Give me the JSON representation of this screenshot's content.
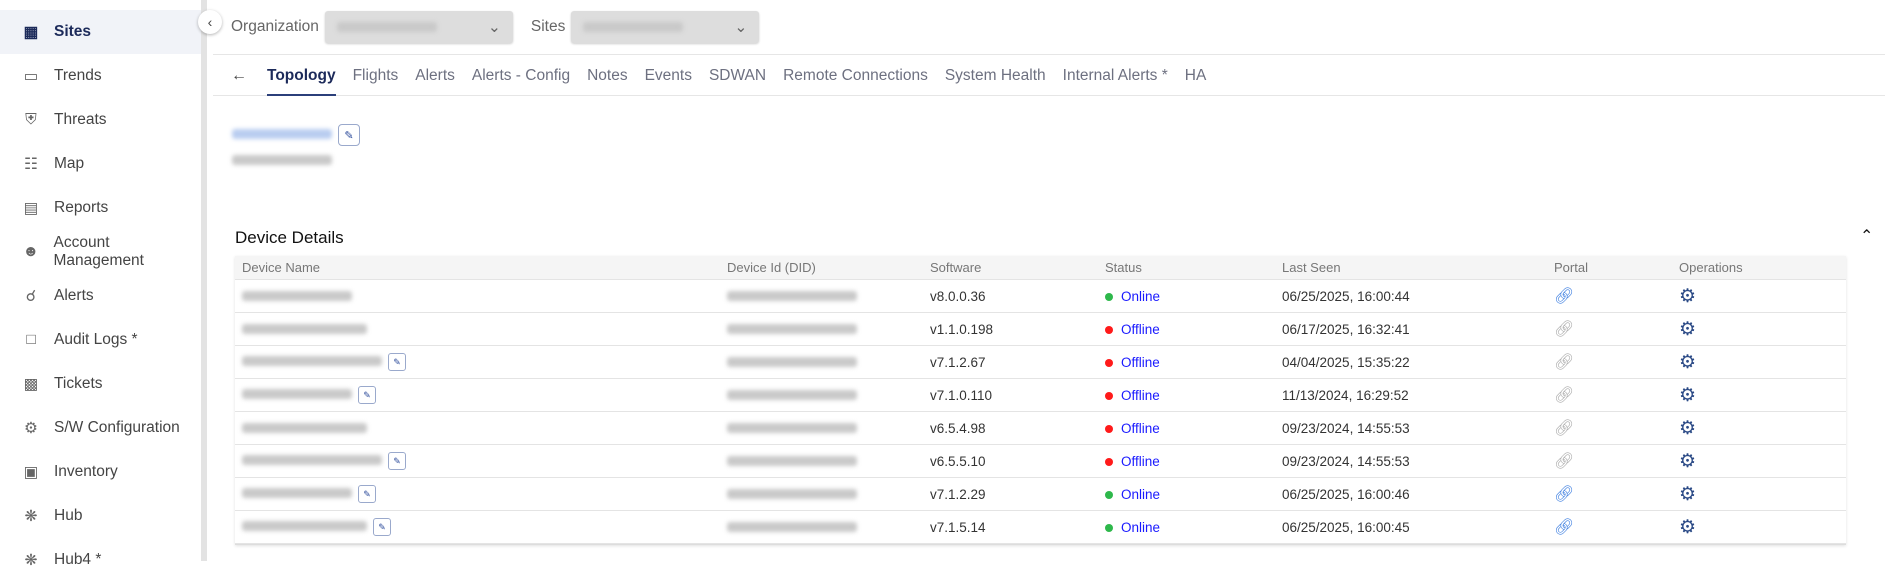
{
  "sidebar": {
    "items": [
      {
        "label": "Sites",
        "icon": "grid-icon",
        "active": true
      },
      {
        "label": "Trends",
        "icon": "tablet-icon"
      },
      {
        "label": "Threats",
        "icon": "shield-icon"
      },
      {
        "label": "Map",
        "icon": "map-icon"
      },
      {
        "label": "Reports",
        "icon": "clipboard-icon"
      },
      {
        "label": "Account Management",
        "icon": "users-icon"
      },
      {
        "label": "Alerts",
        "icon": "bell-icon"
      },
      {
        "label": "Audit Logs *",
        "icon": "file-icon"
      },
      {
        "label": "Tickets",
        "icon": "ticket-icon"
      },
      {
        "label": "S/W Configuration",
        "icon": "config-icon"
      },
      {
        "label": "Inventory",
        "icon": "archive-icon"
      },
      {
        "label": "Hub",
        "icon": "hub-icon"
      },
      {
        "label": "Hub4 *",
        "icon": "hub-icon"
      }
    ]
  },
  "topbar": {
    "organization_label": "Organization",
    "sites_label": "Sites"
  },
  "tabs": [
    "Topology",
    "Flights",
    "Alerts",
    "Alerts - Config",
    "Notes",
    "Events",
    "SDWAN",
    "Remote Connections",
    "System Health",
    "Internal Alerts *",
    "HA"
  ],
  "device_details": {
    "title": "Device Details",
    "columns": [
      "Device Name",
      "Device Id (DID)",
      "Software",
      "Status",
      "Last Seen",
      "Portal",
      "Operations"
    ],
    "rows": [
      {
        "software": "v8.0.0.36",
        "status": "Online",
        "last_seen": "06/25/2025, 16:00:44",
        "portal_active": true
      },
      {
        "software": "v1.1.0.198",
        "status": "Offline",
        "last_seen": "06/17/2025, 16:32:41",
        "portal_active": false
      },
      {
        "software": "v7.1.2.67",
        "status": "Offline",
        "last_seen": "04/04/2025, 15:35:22",
        "portal_active": false
      },
      {
        "software": "v7.1.0.110",
        "status": "Offline",
        "last_seen": "11/13/2024, 16:29:52",
        "portal_active": false
      },
      {
        "software": "v6.5.4.98",
        "status": "Offline",
        "last_seen": "09/23/2024, 14:55:53",
        "portal_active": false
      },
      {
        "software": "v6.5.5.10",
        "status": "Offline",
        "last_seen": "09/23/2024, 14:55:53",
        "portal_active": false
      },
      {
        "software": "v7.1.2.29",
        "status": "Online",
        "last_seen": "06/25/2025, 16:00:46",
        "portal_active": true
      },
      {
        "software": "v7.1.5.14",
        "status": "Online",
        "last_seen": "06/25/2025, 16:00:45",
        "portal_active": true
      }
    ]
  },
  "colors": {
    "online": "#2eb84b",
    "offline": "#ff1a1a",
    "accent": "#1c2a5a",
    "portal_active": "#3b7de0",
    "portal_inactive": "#aaaaaa",
    "gear": "#2b4a86"
  }
}
